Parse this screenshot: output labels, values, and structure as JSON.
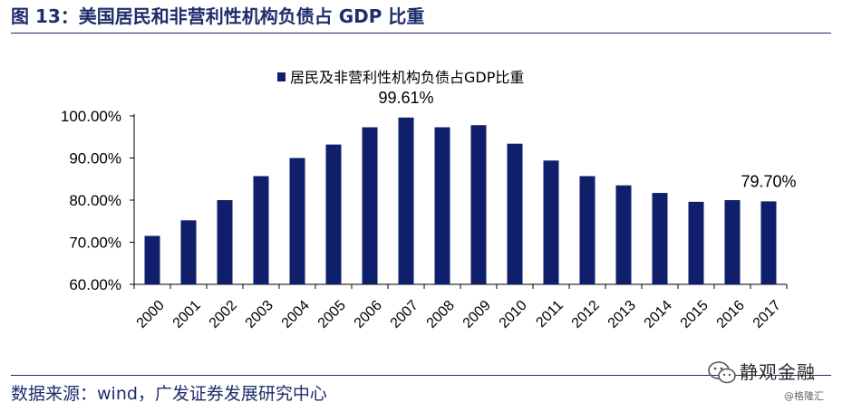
{
  "figure": {
    "title": "图 13：美国居民和非营利性机构负债占 GDP 比重",
    "source": "数据来源：wind，广发证券发展研究中心"
  },
  "watermark": {
    "name": "静观金融",
    "sub": "@格隆汇"
  },
  "chart_data": {
    "type": "bar",
    "title": "",
    "xlabel": "",
    "ylabel": "",
    "categories": [
      "2000",
      "2001",
      "2002",
      "2003",
      "2004",
      "2005",
      "2006",
      "2007",
      "2008",
      "2009",
      "2010",
      "2011",
      "2012",
      "2013",
      "2014",
      "2015",
      "2016",
      "2017"
    ],
    "series": [
      {
        "name": "居民及非营利性机构负债占GDP比重",
        "values": [
          71.5,
          75.2,
          80.0,
          85.7,
          90.0,
          93.2,
          97.3,
          99.61,
          97.3,
          97.8,
          93.4,
          89.4,
          85.7,
          83.5,
          81.7,
          79.6,
          80.0,
          79.7
        ]
      }
    ],
    "data_labels": [
      {
        "category": "2007",
        "text": "99.61%"
      },
      {
        "category": "2017",
        "text": "79.70%"
      }
    ],
    "ylim": [
      60,
      100
    ],
    "yticks": [
      "60.00%",
      "70.00%",
      "80.00%",
      "90.00%",
      "100.00%"
    ],
    "ytick_values": [
      60,
      70,
      80,
      90,
      100
    ],
    "grid": false,
    "legend_position": "top",
    "bar_color": "#0f1f6b"
  }
}
